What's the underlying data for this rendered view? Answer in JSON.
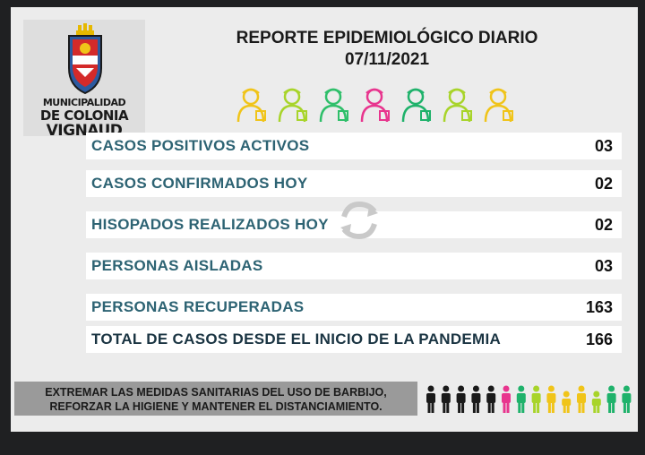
{
  "logo": {
    "line1": "MUNICIPALIDAD",
    "line2": "DE COLONIA",
    "line3": "VIGNAUD"
  },
  "report": {
    "title": "REPORTE EPIDEMIOLÓGICO DIARIO",
    "date": "07/11/2021"
  },
  "rows": [
    {
      "label": "CASOS POSITIVOS ACTIVOS",
      "value": "03"
    },
    {
      "label": "CASOS CONFIRMADOS HOY",
      "value": "02"
    },
    {
      "label": "HISOPADOS REALIZADOS HOY",
      "value": "02"
    },
    {
      "label": "PERSONAS AISLADAS",
      "value": "03"
    },
    {
      "label": "PERSONAS RECUPERADAS",
      "value": "163"
    },
    {
      "label": "TOTAL DE CASOS DESDE EL INICIO DE LA PANDEMIA",
      "value": "166"
    }
  ],
  "banner": {
    "line1": "EXTREMAR LAS MEDIDAS SANITARIAS DEL USO DE BARBIJO,",
    "line2": "REFORZAR LA HIGIENE Y MANTENER EL DISTANCIAMIENTO."
  },
  "colors": {
    "row_text": "#2d6373",
    "worker_icons": [
      "#f0c419",
      "#a8d42a",
      "#2fbf6a",
      "#e8358e",
      "#1fb26b",
      "#a8d42a",
      "#f0c419"
    ],
    "crowd": [
      "#1a1a1a",
      "#1a1a1a",
      "#1a1a1a",
      "#1a1a1a",
      "#1a1a1a",
      "#e8358e",
      "#1fb26b",
      "#a8d42a",
      "#f0c419",
      "#f0c419",
      "#f0c419",
      "#a8d42a",
      "#1fb26b",
      "#1fb26b"
    ]
  }
}
